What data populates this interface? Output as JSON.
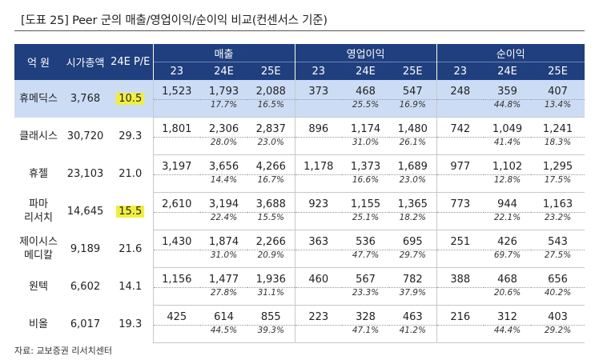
{
  "title": "[도표 25] Peer 군의 매출/영업이익/순이익 비교(컨센서스 기준)",
  "header": {
    "unit": "억 원",
    "mcap": "시가총액",
    "pe": "24E P/E",
    "groups": [
      "매출",
      "영업이익",
      "순이익"
    ],
    "years": [
      "23",
      "24E",
      "25E"
    ]
  },
  "rows": [
    {
      "name": "휴메딕스",
      "mcap": "3,768",
      "pe": "10.5",
      "sales": [
        "1,523",
        "1,793",
        "2,088"
      ],
      "sales_g": [
        "",
        "17.7%",
        "16.5%"
      ],
      "op": [
        "373",
        "468",
        "547"
      ],
      "op_g": [
        "",
        "25.5%",
        "16.9%"
      ],
      "ni": [
        "248",
        "359",
        "407"
      ],
      "ni_g": [
        "",
        "44.8%",
        "13.4%"
      ]
    },
    {
      "name": "클래시스",
      "mcap": "30,720",
      "pe": "29.3",
      "sales": [
        "1,801",
        "2,306",
        "2,837"
      ],
      "sales_g": [
        "",
        "28.0%",
        "23.0%"
      ],
      "op": [
        "896",
        "1,174",
        "1,480"
      ],
      "op_g": [
        "",
        "31.0%",
        "26.1%"
      ],
      "ni": [
        "742",
        "1,049",
        "1,241"
      ],
      "ni_g": [
        "",
        "41.4%",
        "18.3%"
      ]
    },
    {
      "name": "휴젤",
      "mcap": "23,103",
      "pe": "21.0",
      "sales": [
        "3,197",
        "3,656",
        "4,266"
      ],
      "sales_g": [
        "",
        "14.4%",
        "16.7%"
      ],
      "op": [
        "1,178",
        "1,373",
        "1,689"
      ],
      "op_g": [
        "",
        "16.6%",
        "23.0%"
      ],
      "ni": [
        "977",
        "1,102",
        "1,295"
      ],
      "ni_g": [
        "",
        "12.8%",
        "17.5%"
      ]
    },
    {
      "name": "파마리서치",
      "name1": "파마",
      "name2": "리서치",
      "mcap": "14,645",
      "pe": "15.5",
      "sales": [
        "2,610",
        "3,194",
        "3,688"
      ],
      "sales_g": [
        "",
        "22.4%",
        "15.5%"
      ],
      "op": [
        "923",
        "1,155",
        "1,365"
      ],
      "op_g": [
        "",
        "25.1%",
        "18.2%"
      ],
      "ni": [
        "773",
        "944",
        "1,163"
      ],
      "ni_g": [
        "",
        "22.1%",
        "23.2%"
      ]
    },
    {
      "name": "제이시스메디칼",
      "name1": "제이시스",
      "name2": "메디칼",
      "mcap": "9,189",
      "pe": "21.6",
      "sales": [
        "1,430",
        "1,874",
        "2,266"
      ],
      "sales_g": [
        "",
        "31.0%",
        "20.9%"
      ],
      "op": [
        "363",
        "536",
        "695"
      ],
      "op_g": [
        "",
        "47.7%",
        "29.7%"
      ],
      "ni": [
        "251",
        "426",
        "543"
      ],
      "ni_g": [
        "",
        "69.7%",
        "27.5%"
      ]
    },
    {
      "name": "원텍",
      "mcap": "6,602",
      "pe": "14.1",
      "sales": [
        "1,156",
        "1,477",
        "1,936"
      ],
      "sales_g": [
        "",
        "27.8%",
        "31.1%"
      ],
      "op": [
        "460",
        "567",
        "782"
      ],
      "op_g": [
        "",
        "23.3%",
        "37.9%"
      ],
      "ni": [
        "388",
        "468",
        "656"
      ],
      "ni_g": [
        "",
        "20.6%",
        "40.2%"
      ]
    },
    {
      "name": "비올",
      "mcap": "6,017",
      "pe": "19.3",
      "sales": [
        "425",
        "614",
        "855"
      ],
      "sales_g": [
        "",
        "44.5%",
        "39.3%"
      ],
      "op": [
        "223",
        "328",
        "463"
      ],
      "op_g": [
        "",
        "47.1%",
        "41.2%"
      ],
      "ni": [
        "216",
        "312",
        "403"
      ],
      "ni_g": [
        "",
        "44.4%",
        "29.2%"
      ]
    }
  ],
  "source": "자료: 교보증권 리서치센터"
}
